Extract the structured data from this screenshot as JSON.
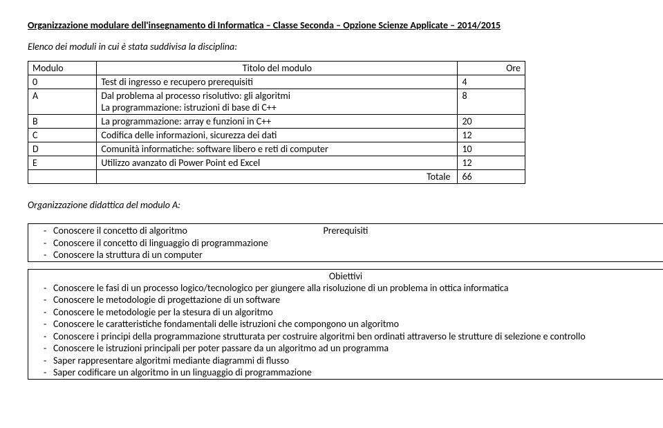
{
  "header": {
    "title": "Organizzazione modulare dell'insegnamento di Informatica – Classe Seconda – Opzione Scienze Applicate – 2014/2015",
    "subtitle": "Elenco dei moduli in cui è stata suddivisa la disciplina:"
  },
  "modulesTable": {
    "headers": {
      "modulo": "Modulo",
      "titolo": "Titolo del modulo",
      "ore": "Ore"
    },
    "rows": [
      {
        "code": "0",
        "desc": "Test di ingresso e recupero prerequisiti",
        "ore": "4"
      },
      {
        "code": "A",
        "desc": "Dal problema al processo risolutivo: gli algoritmi\nLa programmazione: istruzioni di base di C++",
        "ore": "8"
      },
      {
        "code": "B",
        "desc": "La programmazione: array e  funzioni  in C++",
        "ore": "20"
      },
      {
        "code": "C",
        "desc": "Codifica delle informazioni, sicurezza  dei dati",
        "ore": "12"
      },
      {
        "code": "D",
        "desc": "Comunità informatiche: software libero e reti di computer",
        "ore": "10"
      },
      {
        "code": "E",
        "desc": "Utilizzo avanzato di Power Point ed Excel",
        "ore": "12"
      }
    ],
    "total": {
      "label": "Totale",
      "value": "66"
    }
  },
  "moduleA": {
    "sectionLabel": "Organizzazione didattica del modulo A:",
    "prerequisiti": {
      "title": "Prerequisiti",
      "items": [
        "Conoscere il concetto di algoritmo",
        "Conoscere il concetto di linguaggio di programmazione",
        "Conoscere la struttura di un computer"
      ]
    },
    "obiettivi": {
      "title": "Obiettivi",
      "items": [
        "Conoscere le fasi di un processo logico/tecnologico per giungere alla risoluzione di un problema in ottica informatica",
        "Conoscere le metodologie di progettazione di un software",
        "Conoscere le metodologie per la stesura di un algoritmo",
        "Conoscere le caratteristiche fondamentali delle istruzioni che compongono un algoritmo",
        "Conoscere i principi della programmazione strutturata per costruire algoritmi ben ordinati attraverso le strutture di selezione e controllo",
        "Conoscere le istruzioni principali per poter passare da un algoritmo ad un programma",
        "Saper rappresentare algoritmi mediante diagrammi di flusso",
        "Saper codificare un algoritmo in un linguaggio di programmazione"
      ]
    }
  }
}
